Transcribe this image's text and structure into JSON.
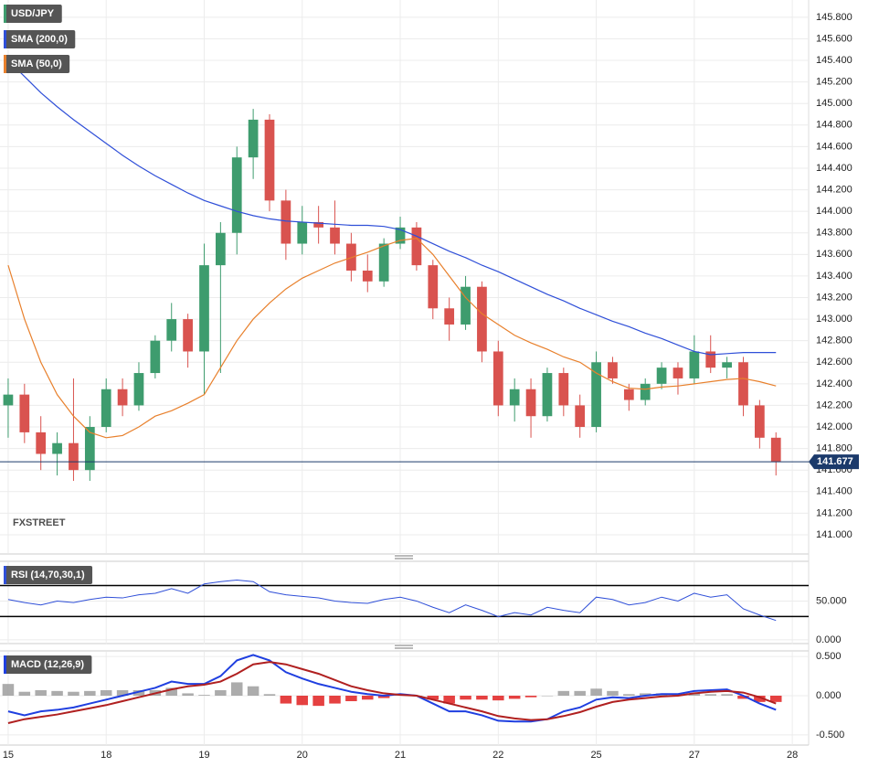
{
  "chart_data": [
    {
      "type": "candlestick",
      "watermark": "FXSTREET",
      "last_price": 141.677,
      "xlim": [
        -0.5,
        49
      ],
      "xticks": [
        {
          "value": 0,
          "label": "15"
        },
        {
          "value": 6,
          "label": "18"
        },
        {
          "value": 12,
          "label": "19"
        },
        {
          "value": 18,
          "label": "20"
        },
        {
          "value": 24,
          "label": "21"
        },
        {
          "value": 30,
          "label": "22"
        },
        {
          "value": 36,
          "label": "25"
        },
        {
          "value": 42,
          "label": "27"
        },
        {
          "value": 48,
          "label": "28"
        }
      ],
      "ylim": [
        140.83,
        145.96
      ],
      "yticks": [
        {
          "value": 141.0,
          "label": "141.000"
        },
        {
          "value": 141.2,
          "label": "141.200"
        },
        {
          "value": 141.4,
          "label": "141.400"
        },
        {
          "value": 141.6,
          "label": "141.600"
        },
        {
          "value": 141.8,
          "label": "141.800"
        },
        {
          "value": 142.0,
          "label": "142.000"
        },
        {
          "value": 142.2,
          "label": "142.200"
        },
        {
          "value": 142.4,
          "label": "142.400"
        },
        {
          "value": 142.6,
          "label": "142.600"
        },
        {
          "value": 142.8,
          "label": "142.800"
        },
        {
          "value": 143.0,
          "label": "143.000"
        },
        {
          "value": 143.2,
          "label": "143.200"
        },
        {
          "value": 143.4,
          "label": "143.400"
        },
        {
          "value": 143.6,
          "label": "143.600"
        },
        {
          "value": 143.8,
          "label": "143.800"
        },
        {
          "value": 144.0,
          "label": "144.000"
        },
        {
          "value": 144.2,
          "label": "144.200"
        },
        {
          "value": 144.4,
          "label": "144.400"
        },
        {
          "value": 144.6,
          "label": "144.600"
        },
        {
          "value": 144.8,
          "label": "144.800"
        },
        {
          "value": 145.0,
          "label": "145.000"
        },
        {
          "value": 145.2,
          "label": "145.200"
        },
        {
          "value": 145.4,
          "label": "145.400"
        },
        {
          "value": 145.6,
          "label": "145.600"
        },
        {
          "value": 145.8,
          "label": "145.800"
        }
      ],
      "grid": true,
      "candles": {
        "name": "USD/JPY",
        "up_color": "#3e9c6e",
        "down_color": "#d9534f",
        "open": [
          142.2,
          142.3,
          141.95,
          141.75,
          141.85,
          141.6,
          142.0,
          142.35,
          142.2,
          142.5,
          142.8,
          143.0,
          142.7,
          143.5,
          143.8,
          144.5,
          144.85,
          144.1,
          143.7,
          143.9,
          143.85,
          143.7,
          143.45,
          143.35,
          143.7,
          143.85,
          143.5,
          143.1,
          142.95,
          143.3,
          142.7,
          142.2,
          142.35,
          142.1,
          142.5,
          142.2,
          142.0,
          142.6,
          142.35,
          142.25,
          142.4,
          142.55,
          142.45,
          142.7,
          142.55,
          142.6,
          142.2,
          141.9
        ],
        "high": [
          142.45,
          142.4,
          142.1,
          141.95,
          142.45,
          142.1,
          142.45,
          142.45,
          142.6,
          142.85,
          143.15,
          143.05,
          143.7,
          143.9,
          144.6,
          144.95,
          144.9,
          144.2,
          144.05,
          144.05,
          144.1,
          143.8,
          143.6,
          143.75,
          143.95,
          143.9,
          143.55,
          143.2,
          143.4,
          143.35,
          142.8,
          142.45,
          142.45,
          142.55,
          142.55,
          142.3,
          142.7,
          142.65,
          142.4,
          142.45,
          142.6,
          142.6,
          142.85,
          142.85,
          142.65,
          142.65,
          142.25,
          141.95
        ],
        "low": [
          141.9,
          141.85,
          141.6,
          141.55,
          141.5,
          141.5,
          141.95,
          142.1,
          142.15,
          142.45,
          142.7,
          142.55,
          142.3,
          142.5,
          143.6,
          144.3,
          144.0,
          143.55,
          143.6,
          143.7,
          143.6,
          143.35,
          143.25,
          143.3,
          143.65,
          143.45,
          143.0,
          142.8,
          142.9,
          142.6,
          142.1,
          142.05,
          141.9,
          142.05,
          142.1,
          141.9,
          141.95,
          142.4,
          142.15,
          142.2,
          142.35,
          142.3,
          142.4,
          142.5,
          142.45,
          142.1,
          141.8,
          141.55
        ],
        "close": [
          142.3,
          141.95,
          141.75,
          141.85,
          141.6,
          142.0,
          142.35,
          142.2,
          142.5,
          142.8,
          143.0,
          142.7,
          143.5,
          143.8,
          144.5,
          144.85,
          144.1,
          143.7,
          143.9,
          143.85,
          143.7,
          143.45,
          143.35,
          143.7,
          143.85,
          143.5,
          143.1,
          142.95,
          143.3,
          142.7,
          142.2,
          142.35,
          142.1,
          142.5,
          142.2,
          142.0,
          142.6,
          142.45,
          142.25,
          142.4,
          142.55,
          142.45,
          142.7,
          142.55,
          142.6,
          142.2,
          141.9,
          141.677
        ]
      },
      "series": [
        {
          "name": "SMA (200,0)",
          "color": "#2f4fd8",
          "values": [
            145.4,
            145.25,
            145.1,
            144.97,
            144.85,
            144.74,
            144.63,
            144.52,
            144.42,
            144.33,
            144.25,
            144.17,
            144.1,
            144.05,
            144.0,
            143.96,
            143.93,
            143.91,
            143.9,
            143.89,
            143.88,
            143.87,
            143.87,
            143.86,
            143.83,
            143.77,
            143.7,
            143.63,
            143.57,
            143.5,
            143.44,
            143.37,
            143.3,
            143.23,
            143.17,
            143.1,
            143.04,
            142.98,
            142.93,
            142.87,
            142.82,
            142.76,
            142.7,
            142.67,
            142.68,
            142.69,
            142.69,
            142.69
          ]
        },
        {
          "name": "SMA (50,0)",
          "color": "#e8802c",
          "values": [
            143.5,
            143.0,
            142.6,
            142.3,
            142.1,
            141.95,
            141.9,
            141.92,
            142.0,
            142.1,
            142.15,
            142.22,
            142.3,
            142.55,
            142.8,
            143.0,
            143.15,
            143.28,
            143.38,
            143.45,
            143.52,
            143.57,
            143.62,
            143.68,
            143.73,
            143.75,
            143.6,
            143.4,
            143.2,
            143.05,
            142.95,
            142.85,
            142.78,
            142.72,
            142.65,
            142.6,
            142.5,
            142.42,
            142.36,
            142.35,
            142.37,
            142.38,
            142.4,
            142.42,
            142.44,
            142.45,
            142.42,
            142.38
          ]
        }
      ]
    },
    {
      "type": "line",
      "ylim": [
        -6,
        100
      ],
      "yticks": [
        {
          "value": 0,
          "label": "0.000"
        },
        {
          "value": 50,
          "label": "50.000"
        }
      ],
      "levels": [
        70,
        30
      ],
      "series": [
        {
          "name": "RSI (14,70,30,1)",
          "color": "#2f4fd8",
          "values": [
            52,
            48,
            45,
            50,
            48,
            52,
            55,
            54,
            58,
            60,
            66,
            60,
            72,
            75,
            77,
            75,
            62,
            58,
            56,
            54,
            50,
            48,
            47,
            52,
            55,
            50,
            42,
            35,
            45,
            38,
            30,
            35,
            32,
            42,
            38,
            35,
            55,
            52,
            45,
            48,
            55,
            50,
            60,
            55,
            58,
            40,
            32,
            25
          ]
        }
      ]
    },
    {
      "type": "macd",
      "ylim": [
        -0.63,
        0.56
      ],
      "yticks": [
        {
          "value": 0.5,
          "label": "0.500"
        },
        {
          "value": 0,
          "label": "0.000"
        },
        {
          "value": -0.5,
          "label": "-0.500"
        }
      ],
      "title": "MACD (12,26,9)",
      "histogram": {
        "up_color": "#9e9e9e",
        "down_color": "#e02020",
        "values": [
          0.15,
          0.05,
          0.07,
          0.06,
          0.05,
          0.06,
          0.07,
          0.07,
          0.07,
          0.07,
          0.1,
          0.03,
          0.01,
          0.07,
          0.17,
          0.12,
          0.02,
          -0.1,
          -0.12,
          -0.13,
          -0.1,
          -0.07,
          -0.05,
          -0.03,
          0.01,
          0.0,
          -0.05,
          -0.1,
          -0.05,
          -0.05,
          -0.06,
          -0.04,
          -0.02,
          0.0,
          0.06,
          0.06,
          0.09,
          0.06,
          0.02,
          0.03,
          0.03,
          0.02,
          0.03,
          0.02,
          0.02,
          -0.04,
          -0.08,
          -0.08
        ]
      },
      "series": [
        {
          "color": "#1f3fe0",
          "values": [
            -0.2,
            -0.25,
            -0.2,
            -0.18,
            -0.15,
            -0.1,
            -0.05,
            0.0,
            0.05,
            0.1,
            0.18,
            0.15,
            0.15,
            0.25,
            0.45,
            0.52,
            0.45,
            0.3,
            0.22,
            0.15,
            0.1,
            0.05,
            0.02,
            0.0,
            0.02,
            0.0,
            -0.1,
            -0.2,
            -0.2,
            -0.25,
            -0.32,
            -0.33,
            -0.33,
            -0.3,
            -0.2,
            -0.15,
            -0.05,
            -0.02,
            -0.03,
            0.0,
            0.02,
            0.02,
            0.06,
            0.07,
            0.08,
            0.0,
            -0.1,
            -0.18
          ]
        },
        {
          "color": "#b02020",
          "values": [
            -0.35,
            -0.3,
            -0.27,
            -0.24,
            -0.2,
            -0.16,
            -0.12,
            -0.07,
            -0.02,
            0.03,
            0.08,
            0.12,
            0.14,
            0.18,
            0.28,
            0.4,
            0.43,
            0.4,
            0.34,
            0.28,
            0.2,
            0.12,
            0.07,
            0.03,
            0.01,
            0.0,
            -0.05,
            -0.1,
            -0.15,
            -0.2,
            -0.26,
            -0.29,
            -0.31,
            -0.3,
            -0.26,
            -0.21,
            -0.14,
            -0.08,
            -0.05,
            -0.03,
            -0.01,
            0.0,
            0.03,
            0.05,
            0.06,
            0.04,
            -0.02,
            -0.1
          ]
        }
      ]
    }
  ]
}
